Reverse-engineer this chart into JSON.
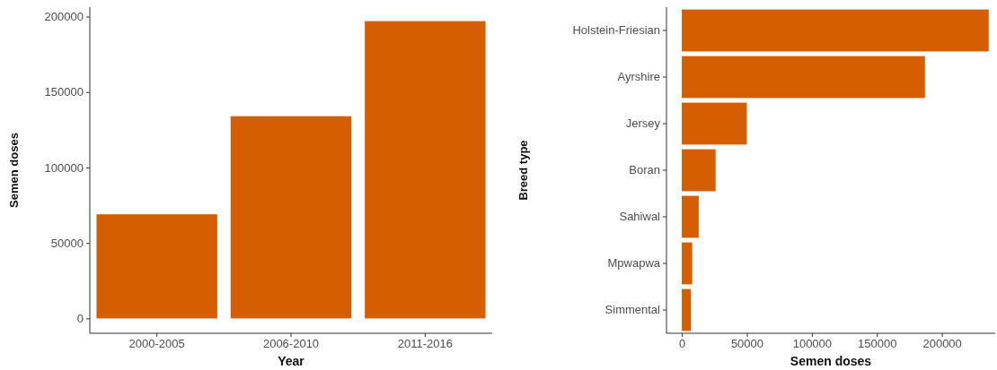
{
  "chart_data": [
    {
      "type": "bar",
      "xlabel": "Year",
      "ylabel": "Semen doses",
      "categories": [
        "2000-2005",
        "2006-2010",
        "2011-2016"
      ],
      "values": [
        69000,
        134000,
        197000
      ],
      "color": "#d45e00",
      "ylim": [
        -9850,
        206250
      ],
      "yticks": [
        0,
        50000,
        100000,
        150000,
        200000
      ],
      "grid": false
    },
    {
      "type": "bar",
      "orientation": "horizontal",
      "xlabel": "Semen doses",
      "ylabel": "Breed type",
      "categories": [
        "Holstein-Friesian",
        "Ayrshire",
        "Jersey",
        "Boran",
        "Sahiwal",
        "Mpwapwa",
        "Simmental"
      ],
      "values": [
        236000,
        187000,
        50000,
        26000,
        13000,
        8000,
        7000
      ],
      "color": "#d45e00",
      "xlim": [
        -11800,
        241000
      ],
      "xticks": [
        0,
        50000,
        100000,
        150000,
        200000
      ],
      "grid": false
    }
  ]
}
